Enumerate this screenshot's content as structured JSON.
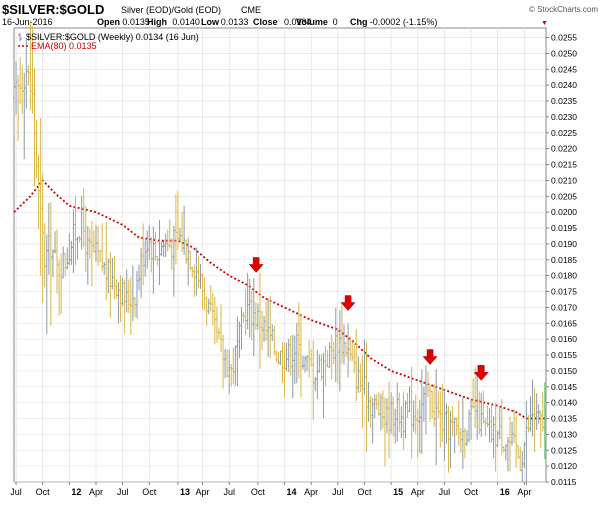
{
  "header": {
    "ticker": "$SILVER:$GOLD",
    "description": "Silver (EOD)/Gold (EOD)",
    "exchange": "CME",
    "copyright": "© StockCharts.com",
    "date": "16-Jun-2016",
    "ohlc": [
      {
        "label": "Open",
        "value": "0.0135"
      },
      {
        "label": "High",
        "value": "0.0140"
      },
      {
        "label": "Low",
        "value": "0.0133"
      },
      {
        "label": "Close",
        "value": "0.0134"
      },
      {
        "label": "Volume",
        "value": "0"
      },
      {
        "label": "Chg",
        "value": "-0.0002 (-1.15%)"
      }
    ],
    "chg_arrow": "▼"
  },
  "legend": [
    {
      "text": "$SILVER:$GOLD (Weekly) 0.0134 (16 Jun)",
      "color": "#000000",
      "icon": "bar-icon"
    },
    {
      "text": "EMA(80) 0.0135",
      "color": "#d10000",
      "icon": "dashed-line-icon"
    }
  ],
  "chart_data": {
    "type": "ohlc",
    "ylim": [
      0.0115,
      0.0258
    ],
    "y_ticks": [
      "0.0115",
      "0.0120",
      "0.0125",
      "0.0130",
      "0.0135",
      "0.0140",
      "0.0145",
      "0.0150",
      "0.0155",
      "0.0160",
      "0.0165",
      "0.0170",
      "0.0175",
      "0.0180",
      "0.0185",
      "0.0190",
      "0.0195",
      "0.0200",
      "0.0205",
      "0.0210",
      "0.0215",
      "0.0220",
      "0.0225",
      "0.0230",
      "0.0235",
      "0.0240",
      "0.0245",
      "0.0250",
      "0.0255"
    ],
    "x_start": "2011-06-27",
    "x_end": "2016-06-17",
    "x_ticks": [
      {
        "label": "Jul",
        "date": "2011-07-04"
      },
      {
        "label": "Oct",
        "date": "2011-10-03"
      },
      {
        "label": "12",
        "date": "2012-01-02"
      },
      {
        "label": "Apr",
        "date": "2012-04-02"
      },
      {
        "label": "Jul",
        "date": "2012-07-02"
      },
      {
        "label": "Oct",
        "date": "2012-10-01"
      },
      {
        "label": "13",
        "date": "2013-01-07"
      },
      {
        "label": "Apr",
        "date": "2013-04-01"
      },
      {
        "label": "Jul",
        "date": "2013-07-01"
      },
      {
        "label": "Oct",
        "date": "2013-10-07"
      },
      {
        "label": "14",
        "date": "2014-01-06"
      },
      {
        "label": "Apr",
        "date": "2014-04-07"
      },
      {
        "label": "Jul",
        "date": "2014-07-07"
      },
      {
        "label": "Oct",
        "date": "2014-10-06"
      },
      {
        "label": "15",
        "date": "2015-01-05"
      },
      {
        "label": "Apr",
        "date": "2015-04-06"
      },
      {
        "label": "Jul",
        "date": "2015-07-06"
      },
      {
        "label": "Oct",
        "date": "2015-10-05"
      },
      {
        "label": "16",
        "date": "2016-01-04"
      },
      {
        "label": "Apr",
        "date": "2016-04-04"
      }
    ],
    "price_anchors": [
      [
        "2011-06-27",
        0.0236
      ],
      [
        "2011-07-18",
        0.024
      ],
      [
        "2011-08-08",
        0.0245
      ],
      [
        "2011-08-29",
        0.0236
      ],
      [
        "2011-09-19",
        0.0205
      ],
      [
        "2011-10-10",
        0.0185
      ],
      [
        "2011-10-31",
        0.019
      ],
      [
        "2011-11-21",
        0.0182
      ],
      [
        "2011-12-19",
        0.0185
      ],
      [
        "2012-01-16",
        0.0192
      ],
      [
        "2012-02-13",
        0.0197
      ],
      [
        "2012-03-05",
        0.0188
      ],
      [
        "2012-04-09",
        0.0186
      ],
      [
        "2012-05-14",
        0.018
      ],
      [
        "2012-06-11",
        0.0178
      ],
      [
        "2012-07-16",
        0.0172
      ],
      [
        "2012-08-13",
        0.0175
      ],
      [
        "2012-09-10",
        0.0187
      ],
      [
        "2012-09-24",
        0.0192
      ],
      [
        "2012-10-22",
        0.0187
      ],
      [
        "2012-11-19",
        0.019
      ],
      [
        "2012-12-17",
        0.019
      ],
      [
        "2013-01-14",
        0.0192
      ],
      [
        "2013-02-11",
        0.0188
      ],
      [
        "2013-03-11",
        0.0182
      ],
      [
        "2013-04-15",
        0.0172
      ],
      [
        "2013-05-13",
        0.0162
      ],
      [
        "2013-06-10",
        0.0155
      ],
      [
        "2013-07-08",
        0.015
      ],
      [
        "2013-08-05",
        0.016
      ],
      [
        "2013-08-26",
        0.017
      ],
      [
        "2013-09-23",
        0.0168
      ],
      [
        "2013-10-21",
        0.0165
      ],
      [
        "2013-11-18",
        0.016
      ],
      [
        "2013-12-16",
        0.0155
      ],
      [
        "2014-01-20",
        0.0155
      ],
      [
        "2014-02-17",
        0.0158
      ],
      [
        "2014-03-17",
        0.0153
      ],
      [
        "2014-04-14",
        0.015
      ],
      [
        "2014-05-12",
        0.0152
      ],
      [
        "2014-06-09",
        0.0155
      ],
      [
        "2014-07-07",
        0.016
      ],
      [
        "2014-08-04",
        0.0158
      ],
      [
        "2014-09-01",
        0.015
      ],
      [
        "2014-09-29",
        0.0145
      ],
      [
        "2014-10-27",
        0.014
      ],
      [
        "2014-11-24",
        0.0138
      ],
      [
        "2014-12-22",
        0.0135
      ],
      [
        "2015-01-19",
        0.0138
      ],
      [
        "2015-02-16",
        0.0135
      ],
      [
        "2015-03-16",
        0.0137
      ],
      [
        "2015-04-13",
        0.0138
      ],
      [
        "2015-05-11",
        0.0143
      ],
      [
        "2015-06-08",
        0.0137
      ],
      [
        "2015-07-06",
        0.0133
      ],
      [
        "2015-08-03",
        0.0132
      ],
      [
        "2015-08-31",
        0.013
      ],
      [
        "2015-09-28",
        0.0133
      ],
      [
        "2015-10-19",
        0.0138
      ],
      [
        "2015-11-16",
        0.0132
      ],
      [
        "2015-12-14",
        0.013
      ],
      [
        "2016-01-11",
        0.013
      ],
      [
        "2016-02-08",
        0.0128
      ],
      [
        "2016-03-07",
        0.0125
      ],
      [
        "2016-03-21",
        0.0122
      ],
      [
        "2016-04-11",
        0.013
      ],
      [
        "2016-05-02",
        0.0137
      ],
      [
        "2016-05-23",
        0.0134
      ],
      [
        "2016-06-13",
        0.0134
      ]
    ],
    "ema_anchors": [
      [
        "2011-06-27",
        0.02
      ],
      [
        "2011-08-22",
        0.0205
      ],
      [
        "2011-10-03",
        0.021
      ],
      [
        "2011-11-14",
        0.0206
      ],
      [
        "2012-01-02",
        0.0202
      ],
      [
        "2012-04-02",
        0.02
      ],
      [
        "2012-07-02",
        0.0196
      ],
      [
        "2012-08-27",
        0.0192
      ],
      [
        "2012-11-05",
        0.0191
      ],
      [
        "2013-01-07",
        0.0191
      ],
      [
        "2013-02-25",
        0.0189
      ],
      [
        "2013-04-29",
        0.0184
      ],
      [
        "2013-07-01",
        0.018
      ],
      [
        "2013-09-02",
        0.0177
      ],
      [
        "2013-10-28",
        0.0173
      ],
      [
        "2014-01-06",
        0.017
      ],
      [
        "2014-04-07",
        0.0166
      ],
      [
        "2014-07-07",
        0.0163
      ],
      [
        "2014-09-01",
        0.0159
      ],
      [
        "2014-10-27",
        0.0154
      ],
      [
        "2015-01-05",
        0.015
      ],
      [
        "2015-04-06",
        0.0147
      ],
      [
        "2015-07-06",
        0.0144
      ],
      [
        "2015-10-05",
        0.0141
      ],
      [
        "2016-01-04",
        0.0139
      ],
      [
        "2016-03-07",
        0.0137
      ],
      [
        "2016-04-11",
        0.0135
      ],
      [
        "2016-06-13",
        0.0135
      ]
    ],
    "annotations": [
      {
        "type": "arrow",
        "date": "2013-10-01",
        "value": 0.0181,
        "color": "#e00000"
      },
      {
        "type": "arrow",
        "date": "2014-08-11",
        "value": 0.0169,
        "color": "#e00000"
      },
      {
        "type": "arrow",
        "date": "2015-05-18",
        "value": 0.0152,
        "color": "#e00000"
      },
      {
        "type": "arrow",
        "date": "2015-11-09",
        "value": 0.0147,
        "color": "#e00000"
      }
    ],
    "colors": {
      "up_bar": "#8a9aa8",
      "down_bar": "#d8b640",
      "last_bar": "#5fc05f",
      "ema": "#d10000",
      "grid": "#dcdcdc"
    }
  }
}
